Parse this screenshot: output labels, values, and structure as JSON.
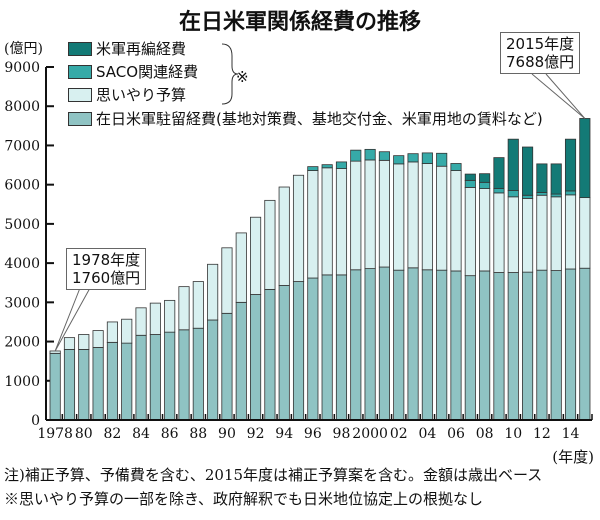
{
  "chart_data": {
    "type": "bar",
    "stacked": true,
    "title": "在日米軍関係経費の推移",
    "ylabel": "(億円)",
    "xlabel": "(年度)",
    "ylim": [
      0,
      9000
    ],
    "yticks": [
      "0",
      "1000",
      "2000",
      "3000",
      "4000",
      "5000",
      "6000",
      "7000",
      "8000",
      "9000"
    ],
    "xtick_labels": [
      "1978",
      "80",
      "82",
      "84",
      "86",
      "88",
      "90",
      "92",
      "94",
      "96",
      "98",
      "2000",
      "02",
      "04",
      "06",
      "08",
      "10",
      "12",
      "14"
    ],
    "categories": [
      1978,
      1979,
      1980,
      1981,
      1982,
      1983,
      1984,
      1985,
      1986,
      1987,
      1988,
      1989,
      1990,
      1991,
      1992,
      1993,
      1994,
      1995,
      1996,
      1997,
      1998,
      1999,
      2000,
      2001,
      2002,
      2003,
      2004,
      2005,
      2006,
      2007,
      2008,
      2009,
      2010,
      2011,
      2012,
      2013,
      2014,
      2015
    ],
    "series": [
      {
        "name": "在日米軍駐留経費(基地対策費、基地交付金、米軍用地の賃料など)",
        "color": "#8fc3c3",
        "values": [
          1700,
          1800,
          1800,
          1850,
          1980,
          1960,
          2160,
          2180,
          2240,
          2300,
          2340,
          2550,
          2720,
          3000,
          3200,
          3330,
          3430,
          3530,
          3620,
          3700,
          3700,
          3830,
          3860,
          3900,
          3820,
          3880,
          3830,
          3820,
          3800,
          3680,
          3800,
          3760,
          3760,
          3770,
          3820,
          3810,
          3850,
          3870
        ]
      },
      {
        "name": "思いやり予算",
        "color": "#d8f0f0",
        "values": [
          60,
          300,
          380,
          430,
          520,
          610,
          700,
          800,
          810,
          1100,
          1190,
          1420,
          1670,
          1770,
          1970,
          2270,
          2510,
          2710,
          2740,
          2730,
          2710,
          2770,
          2770,
          2720,
          2710,
          2700,
          2710,
          2650,
          2560,
          2250,
          2100,
          2030,
          1930,
          1880,
          1910,
          1880,
          1890,
          1800
        ]
      },
      {
        "name": "SACO関連経費",
        "color": "#36aaa8",
        "values": [
          0,
          0,
          0,
          0,
          0,
          0,
          0,
          0,
          0,
          0,
          0,
          0,
          0,
          0,
          0,
          0,
          0,
          0,
          100,
          80,
          170,
          280,
          270,
          220,
          210,
          210,
          270,
          330,
          180,
          180,
          160,
          110,
          160,
          80,
          70,
          70,
          100,
          0
        ]
      },
      {
        "name": "米軍再編経費",
        "color": "#137a76",
        "values": [
          0,
          0,
          0,
          0,
          0,
          0,
          0,
          0,
          0,
          0,
          0,
          0,
          0,
          0,
          0,
          0,
          0,
          0,
          0,
          0,
          0,
          0,
          0,
          0,
          0,
          0,
          0,
          0,
          0,
          160,
          220,
          790,
          1310,
          1230,
          730,
          770,
          1320,
          2018
        ]
      }
    ],
    "annotations": [
      {
        "line1": "1978年度",
        "line2": "1760億円"
      },
      {
        "line1": "2015年度",
        "line2": "7688億円"
      }
    ],
    "legend_placement": "top-left"
  },
  "legend": {
    "items": [
      "米軍再編経費",
      "SACO関連経費",
      "思いやり予算",
      "在日米軍駐留経費(基地対策費、基地交付金、米軍用地の賃料など)"
    ],
    "bracket_mark": "※"
  },
  "notes": [
    "注)補正予算、予備費を含む、2015年度は補正予算案を含む。金額は歳出ベース",
    "※思いやり予算の一部を除き、政府解釈でも日米地位協定上の根拠なし"
  ]
}
